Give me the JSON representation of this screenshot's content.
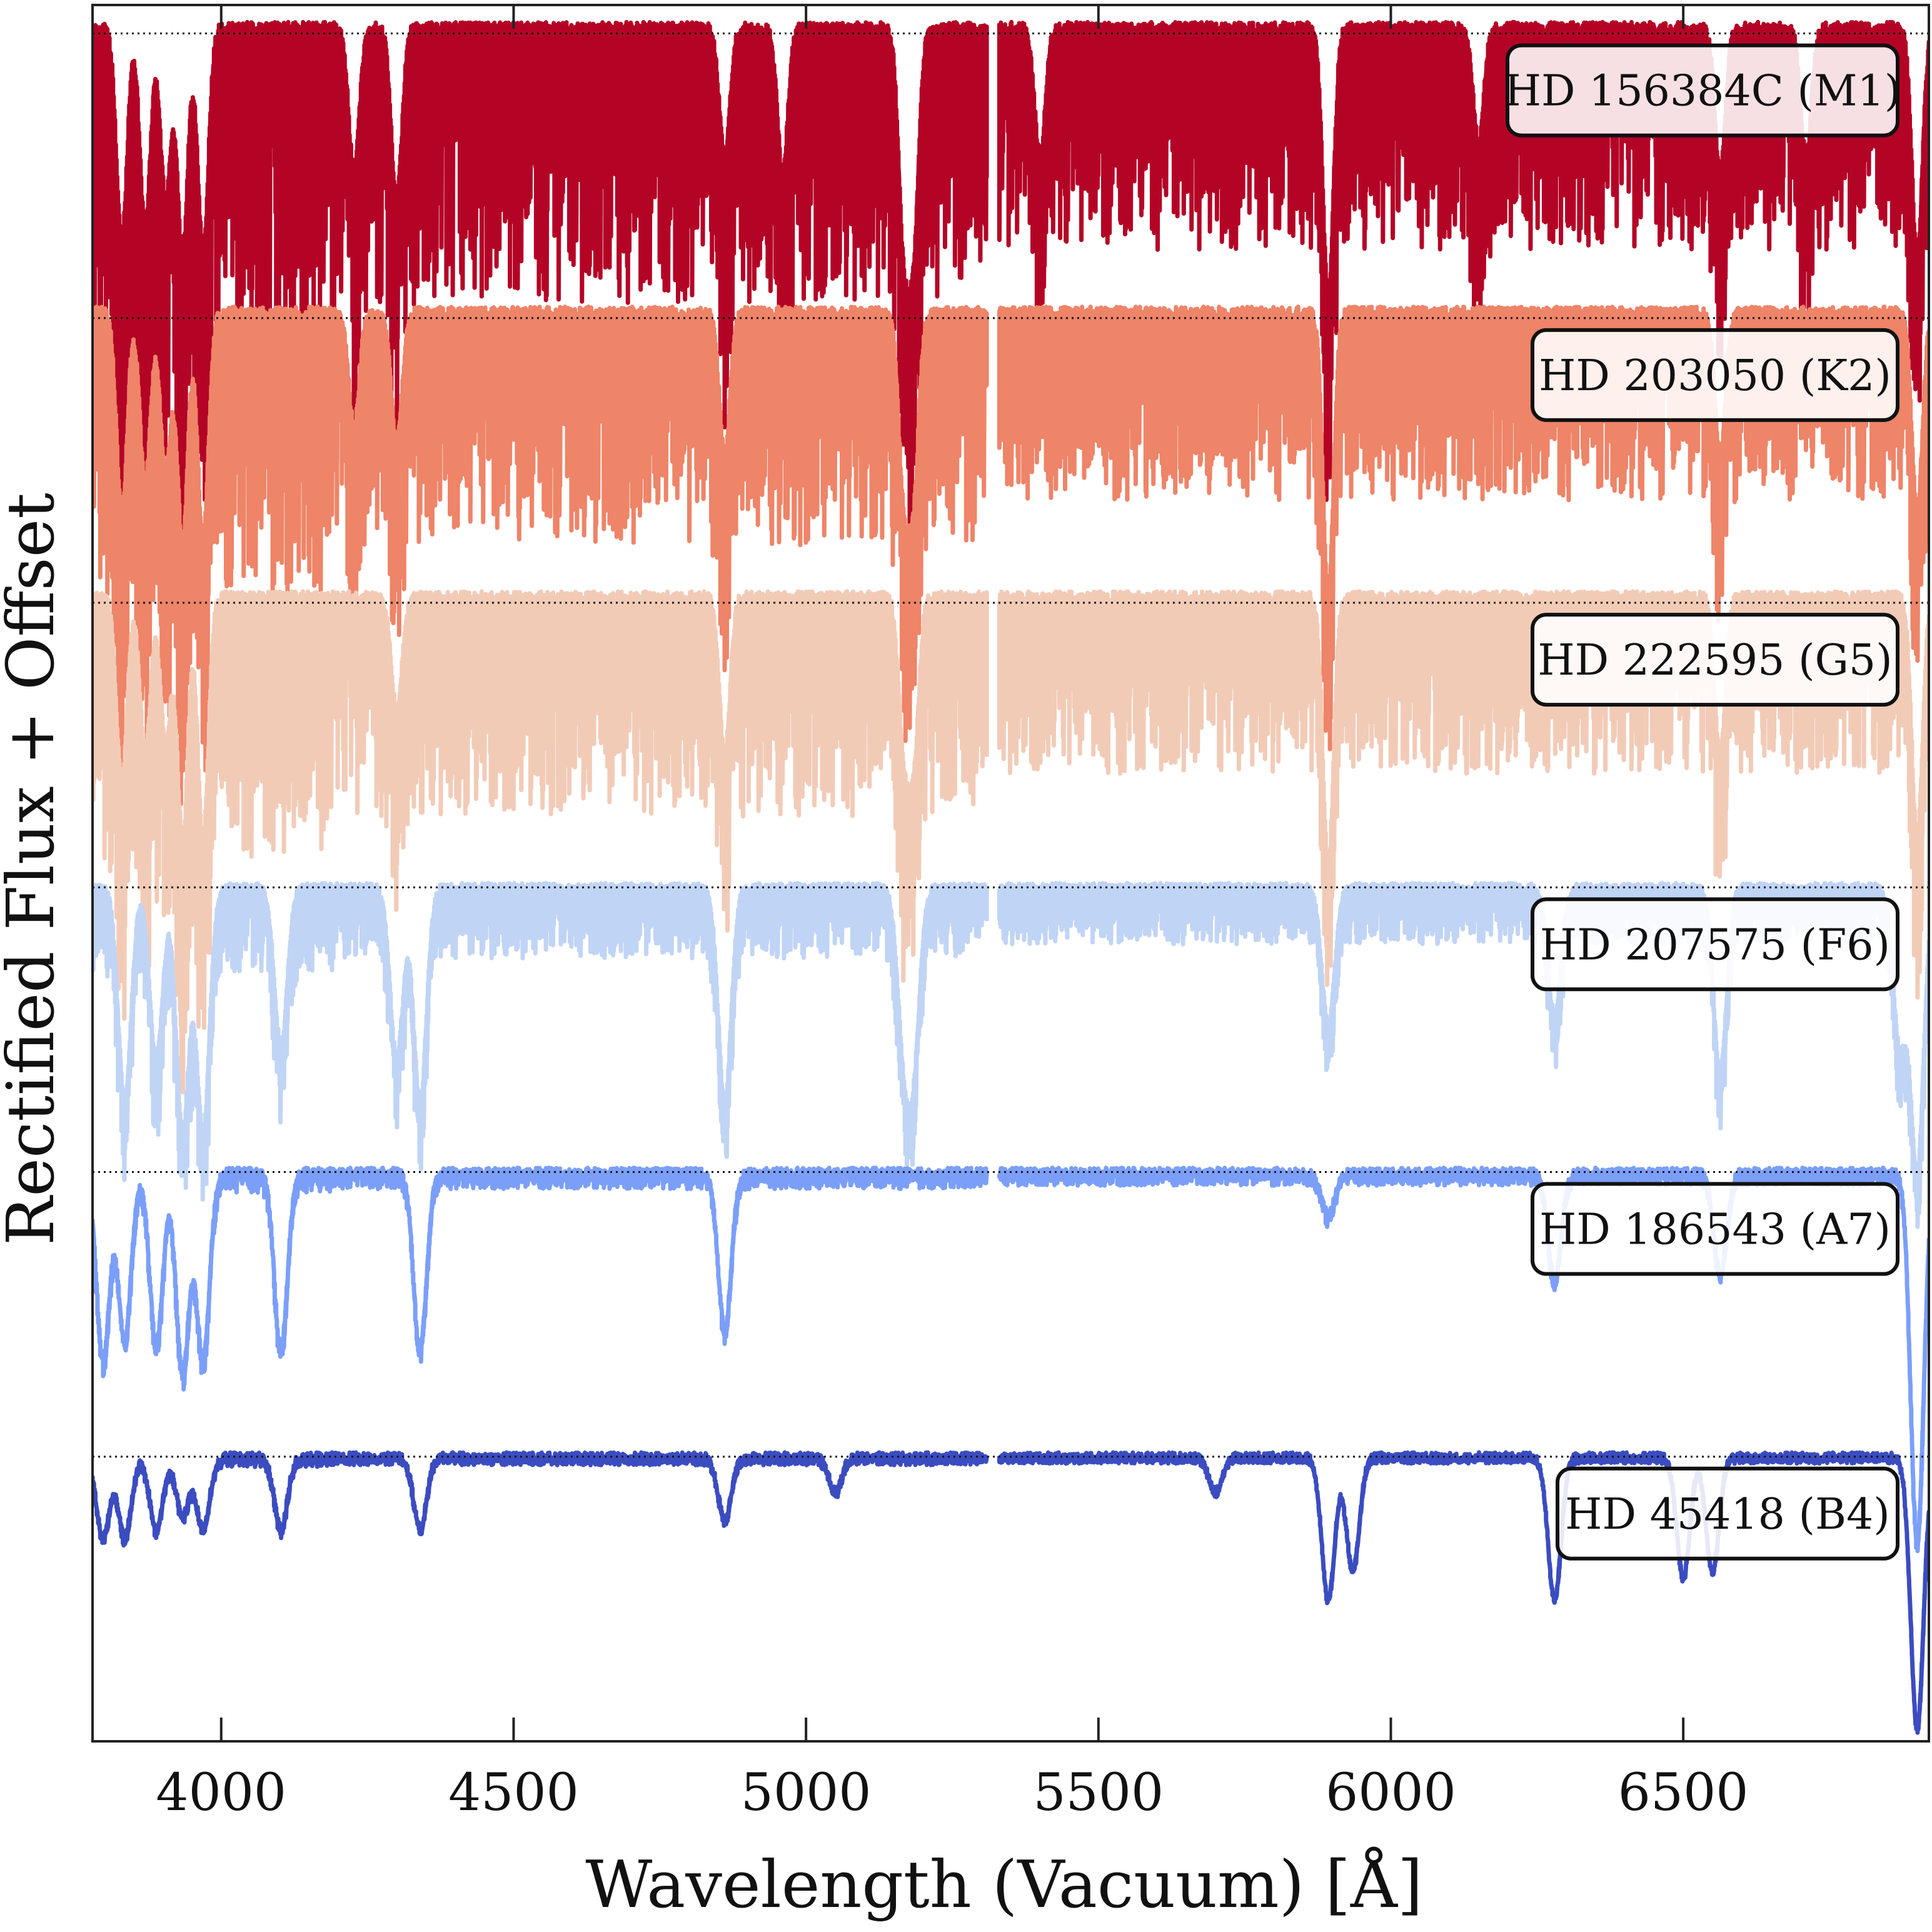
{
  "chart_data": {
    "type": "line",
    "title": "",
    "xlabel": "Wavelength (Vacuum) [Å]",
    "ylabel": "Rectified Flux + Offset",
    "xlim": [
      3780,
      6920
    ],
    "ylim": [
      0,
      6.1
    ],
    "x_ticks": [
      4000,
      4500,
      5000,
      5500,
      6000,
      6500
    ],
    "grid": false,
    "continuum_reference_lines": true,
    "data_gap": [
      5310,
      5330
    ],
    "legend": "per-series label boxes at right edge",
    "series": [
      {
        "name": "HD 156384C (M1)",
        "color": "#b40426",
        "offset": 5,
        "features": [
          {
            "x": 3830,
            "depth": 0.75
          },
          {
            "x": 3870,
            "depth": 0.7
          },
          {
            "x": 3905,
            "depth": 0.6
          },
          {
            "x": 3934,
            "depth": 0.78
          },
          {
            "x": 3969,
            "depth": 0.78
          },
          {
            "x": 4227,
            "depth": 0.5
          },
          {
            "x": 4300,
            "depth": 0.6
          },
          {
            "x": 4861,
            "depth": 0.45
          },
          {
            "x": 4960,
            "depth": 0.5
          },
          {
            "x": 5167,
            "depth": 0.72
          },
          {
            "x": 5184,
            "depth": 0.72
          },
          {
            "x": 5400,
            "depth": 0.45
          },
          {
            "x": 5893,
            "depth": 0.95
          },
          {
            "x": 6150,
            "depth": 0.4
          },
          {
            "x": 6563,
            "depth": 0.5
          },
          {
            "x": 6710,
            "depth": 0.45
          },
          {
            "x": 6900,
            "depth": 0.8
          }
        ]
      },
      {
        "name": "HD 203050 (K2)",
        "color": "#ee8468",
        "offset": 4,
        "features": [
          {
            "x": 3830,
            "depth": 0.7
          },
          {
            "x": 3870,
            "depth": 0.6
          },
          {
            "x": 3905,
            "depth": 0.55
          },
          {
            "x": 3934,
            "depth": 0.8
          },
          {
            "x": 3969,
            "depth": 0.8
          },
          {
            "x": 4227,
            "depth": 0.4
          },
          {
            "x": 4300,
            "depth": 0.45
          },
          {
            "x": 4861,
            "depth": 0.5
          },
          {
            "x": 5167,
            "depth": 0.6
          },
          {
            "x": 5184,
            "depth": 0.6
          },
          {
            "x": 5893,
            "depth": 0.98
          },
          {
            "x": 6563,
            "depth": 0.5
          },
          {
            "x": 6900,
            "depth": 0.7
          }
        ]
      },
      {
        "name": "HD 222595 (G5)",
        "color": "#f2cbb7",
        "offset": 3,
        "features": [
          {
            "x": 3830,
            "depth": 0.65
          },
          {
            "x": 3870,
            "depth": 0.55
          },
          {
            "x": 3905,
            "depth": 0.5
          },
          {
            "x": 3934,
            "depth": 0.85
          },
          {
            "x": 3969,
            "depth": 0.85
          },
          {
            "x": 4300,
            "depth": 0.4
          },
          {
            "x": 4861,
            "depth": 0.55
          },
          {
            "x": 5167,
            "depth": 0.5
          },
          {
            "x": 5184,
            "depth": 0.55
          },
          {
            "x": 5893,
            "depth": 0.95
          },
          {
            "x": 6563,
            "depth": 0.55
          },
          {
            "x": 6900,
            "depth": 0.85
          }
        ]
      },
      {
        "name": "HD 207575 (F6)",
        "color": "#c0d4f5",
        "offset": 2,
        "features": [
          {
            "x": 3835,
            "depth": 0.75
          },
          {
            "x": 3889,
            "depth": 0.6
          },
          {
            "x": 3934,
            "depth": 0.85
          },
          {
            "x": 3969,
            "depth": 0.85
          },
          {
            "x": 4102,
            "depth": 0.55
          },
          {
            "x": 4300,
            "depth": 0.6
          },
          {
            "x": 4340,
            "depth": 0.75
          },
          {
            "x": 4861,
            "depth": 0.75
          },
          {
            "x": 5167,
            "depth": 0.5
          },
          {
            "x": 5184,
            "depth": 0.55
          },
          {
            "x": 5893,
            "depth": 0.48
          },
          {
            "x": 6280,
            "depth": 0.45
          },
          {
            "x": 6563,
            "depth": 0.65
          },
          {
            "x": 6870,
            "depth": 0.55
          },
          {
            "x": 6900,
            "depth": 1.0
          }
        ]
      },
      {
        "name": "HD 186543 (A7)",
        "color": "#7b9ff9",
        "offset": 1,
        "features": [
          {
            "x": 3798,
            "depth": 0.65
          },
          {
            "x": 3835,
            "depth": 0.58
          },
          {
            "x": 3889,
            "depth": 0.6
          },
          {
            "x": 3934,
            "depth": 0.7
          },
          {
            "x": 3969,
            "depth": 0.65
          },
          {
            "x": 4102,
            "depth": 0.62
          },
          {
            "x": 4340,
            "depth": 0.62
          },
          {
            "x": 4861,
            "depth": 0.55
          },
          {
            "x": 5893,
            "depth": 0.15
          },
          {
            "x": 6280,
            "depth": 0.38
          },
          {
            "x": 6563,
            "depth": 0.35
          },
          {
            "x": 6900,
            "depth": 1.3
          }
        ]
      },
      {
        "name": "HD 45418 (B4)",
        "color": "#3b4cc0",
        "offset": 0,
        "features": [
          {
            "x": 3798,
            "depth": 0.28
          },
          {
            "x": 3835,
            "depth": 0.28
          },
          {
            "x": 3889,
            "depth": 0.25
          },
          {
            "x": 3934,
            "depth": 0.2
          },
          {
            "x": 3969,
            "depth": 0.25
          },
          {
            "x": 4102,
            "depth": 0.25
          },
          {
            "x": 4340,
            "depth": 0.25
          },
          {
            "x": 4861,
            "depth": 0.22
          },
          {
            "x": 5050,
            "depth": 0.12
          },
          {
            "x": 5700,
            "depth": 0.12
          },
          {
            "x": 5893,
            "depth": 0.5
          },
          {
            "x": 5935,
            "depth": 0.4
          },
          {
            "x": 6280,
            "depth": 0.5
          },
          {
            "x": 6500,
            "depth": 0.42
          },
          {
            "x": 6550,
            "depth": 0.4
          },
          {
            "x": 6900,
            "depth": 0.95
          }
        ]
      }
    ]
  }
}
